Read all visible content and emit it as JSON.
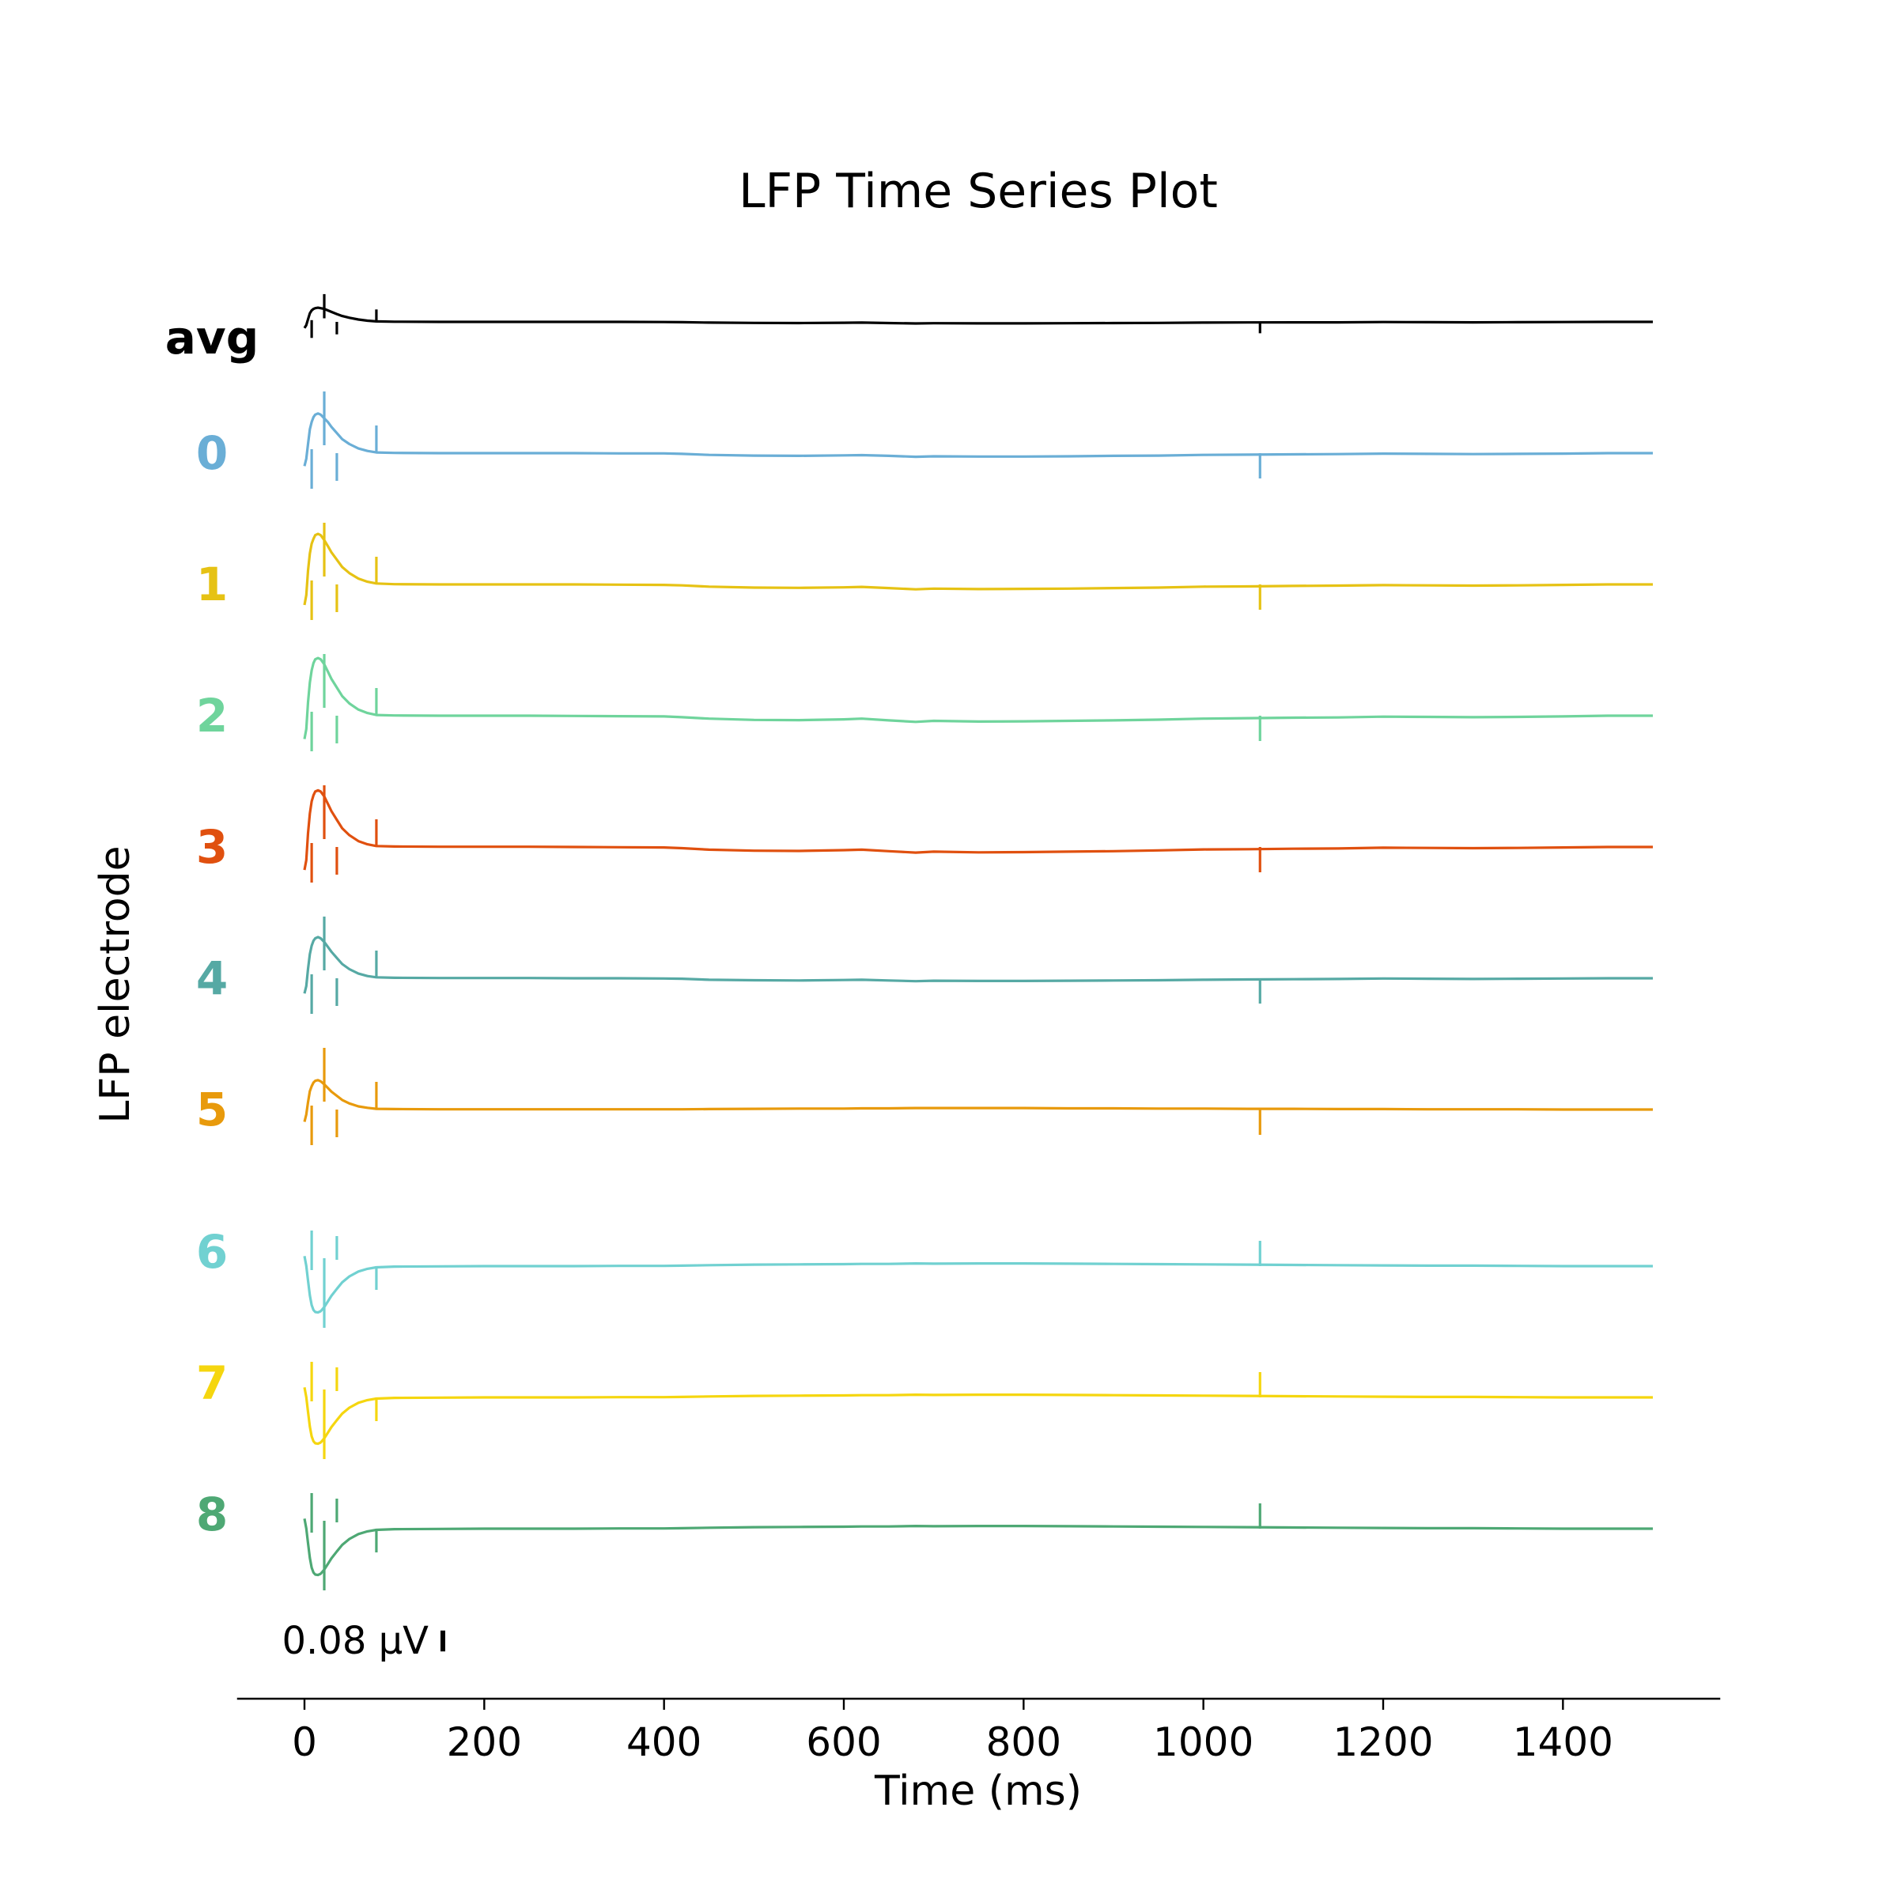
{
  "chart_data": {
    "type": "line",
    "title": "LFP Time Series Plot",
    "xlabel": "Time (ms)",
    "ylabel": "LFP electrode",
    "xlim": [
      -75,
      1575
    ],
    "xticks": [
      0,
      200,
      400,
      600,
      800,
      1000,
      1200,
      1400
    ],
    "grid": false,
    "scale_bar": {
      "label": "0.08 μV",
      "value": 0.08,
      "unit": "μV"
    },
    "stimulus_ticks_ms": [
      8,
      22,
      36,
      80,
      1063
    ],
    "x": [
      0,
      2,
      4,
      6,
      8,
      10,
      12,
      15,
      18,
      22,
      26,
      30,
      36,
      42,
      50,
      60,
      70,
      80,
      100,
      150,
      200,
      250,
      300,
      350,
      400,
      420,
      450,
      500,
      550,
      600,
      620,
      650,
      680,
      700,
      750,
      800,
      850,
      900,
      950,
      1000,
      1050,
      1100,
      1150,
      1200,
      1250,
      1300,
      1350,
      1400,
      1450,
      1500
    ],
    "series": [
      {
        "name": "avg",
        "color": "#000000",
        "values": [
          -0.004,
          -0.002,
          0.002,
          0.006,
          0.008,
          0.009,
          0.0095,
          0.0098,
          0.0095,
          0.009,
          0.008,
          0.007,
          0.0055,
          0.0042,
          0.003,
          0.0018,
          0.001,
          0.0005,
          0.0003,
          0.0002,
          0.0002,
          0.0002,
          0.0002,
          0.0002,
          0.0001,
          0.0,
          -0.0003,
          -0.0005,
          -0.0006,
          -0.0004,
          -0.0003,
          -0.0006,
          -0.0009,
          -0.0007,
          -0.0008,
          -0.0008,
          -0.0007,
          -0.0006,
          -0.0005,
          -0.0003,
          -0.0002,
          -0.0001,
          -0.0001,
          0.0001,
          0.0,
          -0.0001,
          0.0,
          0.0001,
          0.0002,
          0.0002
        ]
      },
      {
        "name": "0",
        "color": "#6aaed6",
        "values": [
          -0.005,
          -0.002,
          0.004,
          0.01,
          0.013,
          0.015,
          0.016,
          0.0165,
          0.016,
          0.0145,
          0.013,
          0.011,
          0.0085,
          0.006,
          0.004,
          0.0022,
          0.0012,
          0.0006,
          0.0004,
          0.0003,
          0.0003,
          0.0003,
          0.0003,
          0.0002,
          0.0002,
          0.0,
          -0.0004,
          -0.0007,
          -0.0008,
          -0.0006,
          -0.0005,
          -0.0008,
          -0.0012,
          -0.001,
          -0.0011,
          -0.0011,
          -0.001,
          -0.0008,
          -0.0007,
          -0.0004,
          -0.0003,
          -0.0002,
          -0.0001,
          0.0001,
          0.0,
          -0.0001,
          0.0,
          0.0001,
          0.0003,
          0.0003
        ]
      },
      {
        "name": "1",
        "color": "#e6c214",
        "values": [
          -0.008,
          -0.004,
          0.006,
          0.013,
          0.017,
          0.019,
          0.0205,
          0.021,
          0.0205,
          0.0185,
          0.016,
          0.0135,
          0.0105,
          0.0075,
          0.005,
          0.0028,
          0.0015,
          0.0008,
          0.0005,
          0.0004,
          0.0004,
          0.0004,
          0.0004,
          0.0003,
          0.0002,
          0.0,
          -0.0005,
          -0.0009,
          -0.001,
          -0.0008,
          -0.0006,
          -0.0011,
          -0.0016,
          -0.0013,
          -0.0015,
          -0.0014,
          -0.0013,
          -0.0011,
          -0.0009,
          -0.0005,
          -0.0004,
          -0.0002,
          -0.0001,
          0.0001,
          0.0,
          -0.0001,
          0.0,
          0.0002,
          0.0004,
          0.0004
        ]
      },
      {
        "name": "2",
        "color": "#6fd49c",
        "values": [
          -0.009,
          -0.005,
          0.006,
          0.014,
          0.019,
          0.022,
          0.0235,
          0.024,
          0.0235,
          0.0215,
          0.0185,
          0.0155,
          0.012,
          0.0085,
          0.0055,
          0.003,
          0.0016,
          0.0008,
          0.0006,
          0.0005,
          0.0005,
          0.0005,
          0.0004,
          0.0003,
          0.0002,
          -0.0001,
          -0.0007,
          -0.0012,
          -0.0013,
          -0.001,
          -0.0007,
          -0.0014,
          -0.002,
          -0.0016,
          -0.0019,
          -0.0018,
          -0.0016,
          -0.0014,
          -0.0011,
          -0.0007,
          -0.0005,
          -0.0003,
          -0.0002,
          0.0001,
          0.0,
          -0.0001,
          0.0,
          0.0002,
          0.0005,
          0.0005
        ]
      },
      {
        "name": "3",
        "color": "#e0500f",
        "values": [
          -0.009,
          -0.005,
          0.006,
          0.014,
          0.019,
          0.0215,
          0.023,
          0.0235,
          0.023,
          0.021,
          0.018,
          0.015,
          0.0115,
          0.008,
          0.0052,
          0.0028,
          0.0015,
          0.0008,
          0.0006,
          0.0005,
          0.0005,
          0.0005,
          0.0004,
          0.0003,
          0.0002,
          -0.0001,
          -0.0007,
          -0.0011,
          -0.0012,
          -0.0009,
          -0.0007,
          -0.0013,
          -0.0019,
          -0.0015,
          -0.0018,
          -0.0017,
          -0.0015,
          -0.0013,
          -0.001,
          -0.0006,
          -0.0005,
          -0.0003,
          -0.0002,
          0.0001,
          0.0,
          -0.0001,
          0.0,
          0.0002,
          0.0004,
          0.0004
        ]
      },
      {
        "name": "4",
        "color": "#56a9a4",
        "values": [
          -0.006,
          -0.003,
          0.004,
          0.01,
          0.0135,
          0.0155,
          0.0165,
          0.017,
          0.0165,
          0.015,
          0.013,
          0.011,
          0.0085,
          0.006,
          0.0039,
          0.0021,
          0.0011,
          0.0006,
          0.0004,
          0.0003,
          0.0003,
          0.0003,
          0.0002,
          0.0002,
          0.0001,
          0.0,
          -0.0004,
          -0.0006,
          -0.0007,
          -0.0005,
          -0.0004,
          -0.0007,
          -0.001,
          -0.0008,
          -0.0009,
          -0.0009,
          -0.0008,
          -0.0007,
          -0.0006,
          -0.0004,
          -0.0003,
          -0.0002,
          -0.0001,
          0.0001,
          0.0,
          -0.0001,
          0.0,
          0.0001,
          0.0002,
          0.0002
        ]
      },
      {
        "name": "5",
        "color": "#e89a0c",
        "values": [
          -0.005,
          -0.002,
          0.003,
          0.0075,
          0.0095,
          0.011,
          0.0117,
          0.012,
          0.0115,
          0.0103,
          0.0088,
          0.0073,
          0.0056,
          0.0039,
          0.0025,
          0.0013,
          0.0007,
          0.0003,
          0.0002,
          0.0001,
          0.0001,
          0.0001,
          0.0001,
          0.0001,
          0.0001,
          0.0001,
          0.0002,
          0.0003,
          0.0004,
          0.0004,
          0.0005,
          0.0005,
          0.0006,
          0.0006,
          0.0006,
          0.0006,
          0.0005,
          0.0005,
          0.0004,
          0.0004,
          0.0003,
          0.0003,
          0.0002,
          0.0002,
          0.0001,
          0.0001,
          0.0001,
          0.0,
          0.0,
          0.0
        ]
      },
      {
        "name": "6",
        "color": "#71d1d1",
        "values": [
          0.004,
          0.0,
          -0.006,
          -0.012,
          -0.016,
          -0.018,
          -0.0188,
          -0.019,
          -0.0185,
          -0.0168,
          -0.0145,
          -0.0122,
          -0.0094,
          -0.0067,
          -0.0043,
          -0.0023,
          -0.0012,
          -0.0006,
          -0.0003,
          -0.0002,
          -0.0001,
          -0.0001,
          -0.0001,
          0.0,
          0.0,
          0.0001,
          0.0003,
          0.0005,
          0.0006,
          0.0007,
          0.0008,
          0.0008,
          0.001,
          0.0009,
          0.001,
          0.001,
          0.0009,
          0.0008,
          0.0007,
          0.0006,
          0.0005,
          0.0004,
          0.0003,
          0.0002,
          0.0001,
          0.0001,
          0.0,
          -0.0001,
          -0.0001,
          -0.0001
        ]
      },
      {
        "name": "7",
        "color": "#f5d60f",
        "values": [
          0.004,
          0.0,
          -0.006,
          -0.012,
          -0.016,
          -0.018,
          -0.0188,
          -0.019,
          -0.0185,
          -0.0168,
          -0.0145,
          -0.0122,
          -0.0094,
          -0.0067,
          -0.0043,
          -0.0023,
          -0.0012,
          -0.0006,
          -0.0003,
          -0.0002,
          -0.0001,
          -0.0001,
          -0.0001,
          0.0,
          0.0,
          0.0001,
          0.0003,
          0.0005,
          0.0006,
          0.0007,
          0.0008,
          0.0008,
          0.001,
          0.0009,
          0.001,
          0.001,
          0.0009,
          0.0008,
          0.0007,
          0.0006,
          0.0005,
          0.0004,
          0.0003,
          0.0002,
          0.0001,
          0.0001,
          0.0,
          -0.0001,
          -0.0001,
          -0.0001
        ]
      },
      {
        "name": "8",
        "color": "#4ea874",
        "values": [
          0.004,
          0.0,
          -0.006,
          -0.012,
          -0.016,
          -0.018,
          -0.0188,
          -0.019,
          -0.0185,
          -0.0168,
          -0.0145,
          -0.0122,
          -0.0094,
          -0.0067,
          -0.0043,
          -0.0023,
          -0.0012,
          -0.0006,
          -0.0003,
          -0.0002,
          -0.0001,
          -0.0001,
          -0.0001,
          0.0,
          0.0,
          0.0001,
          0.0003,
          0.0005,
          0.0006,
          0.0007,
          0.0008,
          0.0008,
          0.001,
          0.0009,
          0.001,
          0.001,
          0.0009,
          0.0008,
          0.0007,
          0.0006,
          0.0005,
          0.0004,
          0.0003,
          0.0002,
          0.0001,
          0.0001,
          0.0,
          -0.0001,
          -0.0001,
          -0.0001
        ]
      }
    ]
  }
}
